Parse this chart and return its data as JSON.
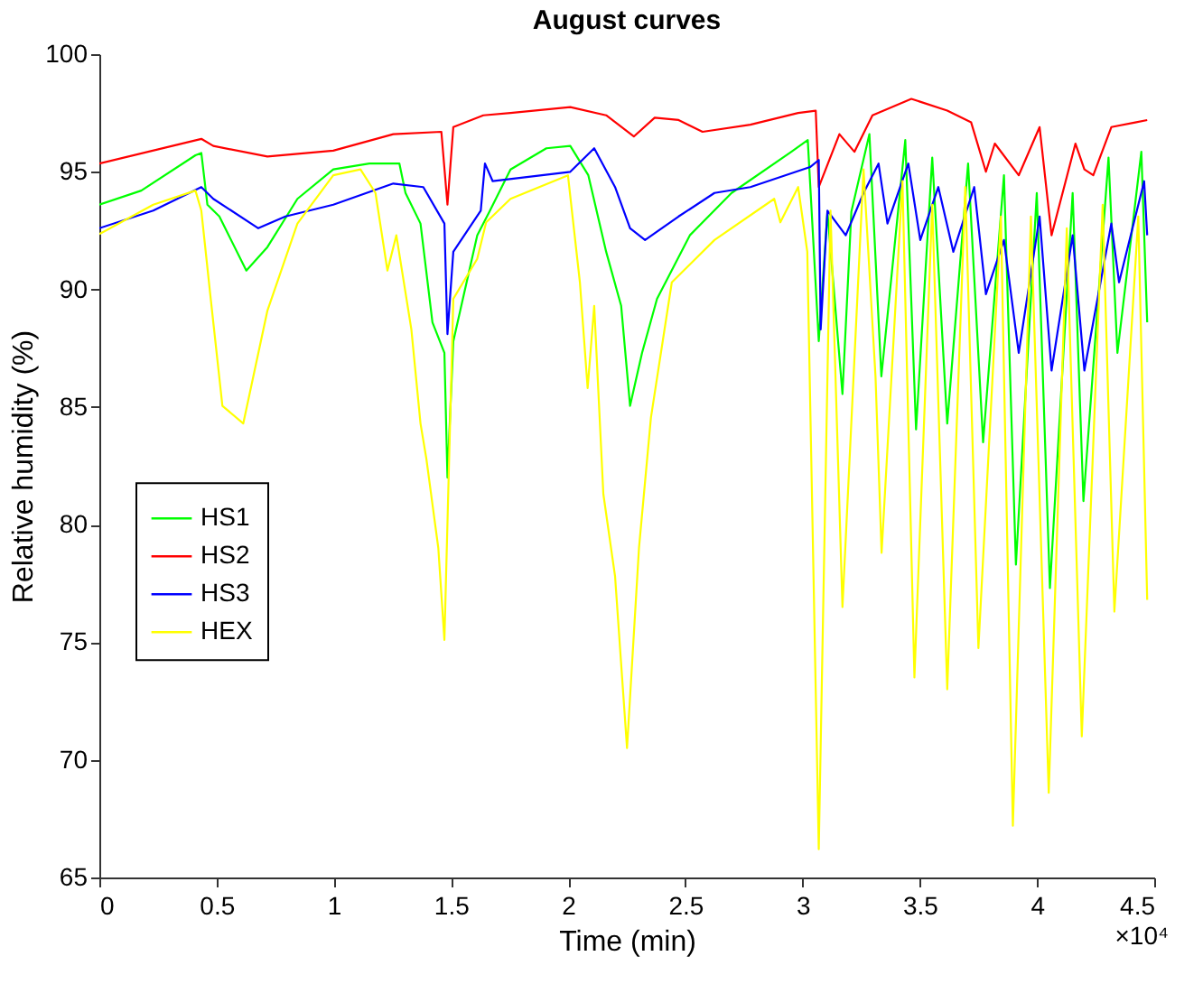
{
  "chart_data": {
    "type": "line",
    "title": "August curves",
    "xlabel": "Time (min)",
    "ylabel": "Relative humidity (%)",
    "annotations": [
      "×10⁴"
    ],
    "xlim": [
      0,
      4.5
    ],
    "ylim": [
      65,
      100
    ],
    "xticks": [
      0,
      0.5,
      1,
      1.5,
      2,
      2.5,
      3,
      3.5,
      4,
      4.5
    ],
    "yticks": [
      65,
      70,
      75,
      80,
      85,
      90,
      95,
      100
    ],
    "grid": false,
    "legend": "left",
    "marker": "none",
    "line_style": "solid",
    "series": [
      {
        "name": "HS1",
        "color": "#00ff00",
        "x": [
          0,
          0.179,
          0.41,
          0.435,
          0.461,
          0.512,
          0.627,
          0.717,
          0.845,
          0.998,
          1.152,
          1.28,
          1.306,
          1.37,
          1.421,
          1.472,
          1.485,
          1.51,
          1.612,
          1.664,
          1.754,
          1.907,
          2.009,
          2.086,
          2.162,
          2.226,
          2.264,
          2.315,
          2.379,
          2.519,
          2.697,
          2.952,
          3.022,
          3.069,
          3.106,
          3.17,
          3.208,
          3.285,
          3.336,
          3.438,
          3.484,
          3.553,
          3.617,
          3.706,
          3.77,
          3.859,
          3.91,
          3.999,
          4.055,
          4.152,
          4.198,
          4.305,
          4.343,
          4.445,
          4.47
        ],
        "values": [
          93.6,
          94.2,
          95.7,
          95.8,
          93.6,
          93.1,
          90.8,
          91.8,
          93.85,
          95.1,
          95.35,
          95.35,
          94.1,
          92.8,
          88.6,
          87.3,
          82.0,
          87.8,
          92.3,
          93.3,
          95.1,
          96.0,
          96.1,
          94.85,
          91.6,
          89.3,
          85.05,
          87.3,
          89.6,
          92.3,
          94.1,
          95.85,
          96.35,
          87.8,
          93.3,
          85.55,
          93.3,
          96.6,
          86.3,
          96.35,
          84.05,
          95.6,
          84.3,
          95.35,
          83.5,
          94.85,
          78.3,
          94.1,
          77.3,
          94.1,
          81.0,
          95.6,
          87.3,
          95.85,
          88.6
        ]
      },
      {
        "name": "HS2",
        "color": "#ff0000",
        "x": [
          0,
          0.435,
          0.486,
          0.717,
          0.998,
          1.254,
          1.459,
          1.485,
          1.51,
          1.638,
          1.754,
          2.009,
          2.162,
          2.28,
          2.369,
          2.471,
          2.573,
          2.777,
          2.981,
          3.056,
          3.069,
          3.157,
          3.221,
          3.298,
          3.464,
          3.617,
          3.719,
          3.782,
          3.82,
          3.922,
          4.011,
          4.062,
          4.164,
          4.202,
          4.24,
          4.317,
          4.419,
          4.47
        ],
        "values": [
          95.35,
          96.4,
          96.1,
          95.65,
          95.9,
          96.6,
          96.7,
          93.6,
          96.9,
          97.4,
          97.5,
          97.75,
          97.4,
          96.5,
          97.3,
          97.2,
          96.7,
          97.0,
          97.5,
          97.6,
          94.35,
          96.6,
          95.85,
          97.4,
          98.1,
          97.6,
          97.1,
          95.0,
          96.2,
          94.85,
          96.9,
          92.3,
          96.2,
          95.1,
          94.85,
          96.9,
          97.1,
          97.2
        ]
      },
      {
        "name": "HS3",
        "color": "#0000ff",
        "x": [
          0,
          0.23,
          0.435,
          0.486,
          0.678,
          0.794,
          0.998,
          1.254,
          1.382,
          1.472,
          1.485,
          1.51,
          1.627,
          1.645,
          1.678,
          2.009,
          2.111,
          2.2,
          2.264,
          2.328,
          2.471,
          2.624,
          2.777,
          3.032,
          3.069,
          3.077,
          3.106,
          3.184,
          3.26,
          3.324,
          3.362,
          3.451,
          3.502,
          3.579,
          3.643,
          3.732,
          3.782,
          3.859,
          3.922,
          4.011,
          4.062,
          4.152,
          4.202,
          4.317,
          4.35,
          4.457,
          4.47
        ],
        "values": [
          92.6,
          93.35,
          94.35,
          93.85,
          92.6,
          93.1,
          93.6,
          94.5,
          94.35,
          92.8,
          88.1,
          91.6,
          93.35,
          95.35,
          94.6,
          95.0,
          96.0,
          94.35,
          92.6,
          92.1,
          93.1,
          94.1,
          94.35,
          95.2,
          95.5,
          88.3,
          93.35,
          92.3,
          94.1,
          95.35,
          92.8,
          95.35,
          92.1,
          94.35,
          91.6,
          94.35,
          89.8,
          92.1,
          87.3,
          93.1,
          86.55,
          92.3,
          86.55,
          92.8,
          90.3,
          94.6,
          92.3
        ]
      },
      {
        "name": "HEX",
        "color": "#ffff00",
        "x": [
          0,
          0.23,
          0.41,
          0.435,
          0.473,
          0.525,
          0.614,
          0.717,
          0.845,
          0.998,
          1.114,
          1.178,
          1.229,
          1.267,
          1.331,
          1.37,
          1.395,
          1.446,
          1.472,
          1.51,
          1.612,
          1.65,
          1.754,
          1.999,
          2.05,
          2.083,
          2.111,
          2.15,
          2.2,
          2.251,
          2.302,
          2.353,
          2.442,
          2.624,
          2.879,
          2.905,
          2.981,
          3.02,
          3.069,
          3.119,
          3.17,
          3.26,
          3.311,
          3.337,
          3.426,
          3.477,
          3.553,
          3.617,
          3.694,
          3.75,
          3.846,
          3.897,
          3.974,
          4.05,
          4.127,
          4.191,
          4.28,
          4.33,
          4.432,
          4.47
        ],
        "values": [
          92.35,
          93.6,
          94.2,
          93.35,
          89.8,
          85.05,
          84.3,
          89.1,
          92.8,
          94.85,
          95.1,
          94.1,
          90.8,
          92.3,
          88.3,
          84.3,
          82.8,
          79.0,
          75.1,
          89.6,
          91.3,
          92.85,
          93.85,
          94.85,
          90.3,
          85.8,
          89.3,
          81.3,
          77.8,
          70.5,
          79.0,
          84.55,
          90.3,
          92.1,
          93.85,
          92.85,
          94.35,
          91.6,
          66.2,
          93.35,
          76.5,
          95.1,
          86.3,
          78.8,
          94.6,
          73.5,
          93.6,
          73.0,
          94.35,
          74.75,
          93.1,
          67.2,
          93.1,
          68.6,
          92.6,
          71.0,
          93.6,
          76.3,
          93.1,
          76.8
        ]
      }
    ]
  }
}
